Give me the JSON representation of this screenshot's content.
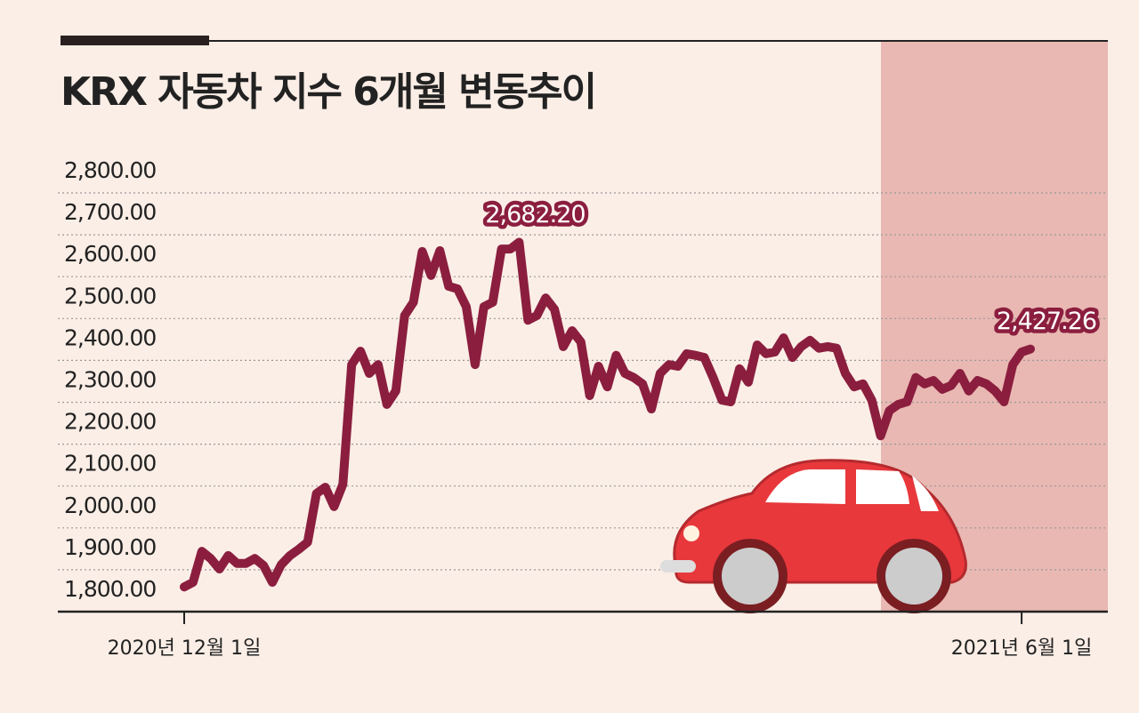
{
  "chart_data": {
    "type": "line",
    "title": "KRX 자동차 지수 6개월 변동추이",
    "categories": [
      "2020년 12월 1일",
      null,
      null,
      null,
      null,
      null,
      null,
      null,
      null,
      null,
      null,
      null,
      null,
      null,
      null,
      null,
      null,
      null,
      null,
      null,
      null,
      null,
      null,
      null,
      null,
      null,
      null,
      null,
      null,
      null,
      null,
      null,
      null,
      null,
      null,
      null,
      null,
      null,
      null,
      null,
      null,
      null,
      null,
      null,
      null,
      null,
      null,
      null,
      null,
      null,
      null,
      null,
      null,
      null,
      null,
      null,
      null,
      null,
      null,
      null,
      null,
      null,
      null,
      null,
      null,
      null,
      null,
      null,
      null,
      null,
      null,
      null,
      null,
      null,
      null,
      null,
      null,
      null,
      null,
      null,
      null,
      null,
      null,
      null,
      null,
      null,
      null,
      null,
      null,
      null,
      null,
      null,
      null,
      null,
      null,
      "2021년 6월 1일",
      null
    ],
    "values": [
      1859,
      1870,
      1944,
      1927,
      1902,
      1934,
      1915,
      1915,
      1927,
      1910,
      1870,
      1912,
      1934,
      1949,
      1966,
      2082,
      2097,
      2051,
      2104,
      2390,
      2422,
      2369,
      2390,
      2295,
      2327,
      2507,
      2539,
      2660,
      2603,
      2662,
      2577,
      2571,
      2528,
      2390,
      2528,
      2539,
      2666,
      2666,
      2682.2,
      2496,
      2507,
      2549,
      2522,
      2433,
      2471,
      2444,
      2316,
      2386,
      2337,
      2412,
      2369,
      2359,
      2344,
      2284,
      2369,
      2390,
      2386,
      2416,
      2412,
      2407,
      2359,
      2305,
      2301,
      2380,
      2348,
      2437,
      2416,
      2420,
      2454,
      2407,
      2433,
      2448,
      2429,
      2433,
      2429,
      2369,
      2337,
      2344,
      2305,
      2220,
      2280,
      2295,
      2301,
      2359,
      2344,
      2352,
      2331,
      2340,
      2369,
      2327,
      2352,
      2344,
      2327,
      2301,
      2390,
      2420,
      2427.26
    ],
    "value_labels": [
      null,
      null,
      null,
      null,
      null,
      null,
      null,
      null,
      null,
      null,
      null,
      null,
      null,
      null,
      null,
      null,
      null,
      null,
      null,
      null,
      null,
      null,
      null,
      null,
      null,
      null,
      null,
      null,
      null,
      null,
      null,
      null,
      null,
      null,
      null,
      null,
      null,
      null,
      "2,682.20",
      null,
      null,
      null,
      null,
      null,
      null,
      null,
      null,
      null,
      null,
      null,
      null,
      null,
      null,
      null,
      null,
      null,
      null,
      null,
      null,
      null,
      null,
      null,
      null,
      null,
      null,
      null,
      null,
      null,
      null,
      null,
      null,
      null,
      null,
      null,
      null,
      null,
      null,
      null,
      null,
      null,
      null,
      null,
      null,
      null,
      null,
      null,
      null,
      null,
      null,
      null,
      null,
      null,
      null,
      null,
      null,
      null,
      "2,427.26"
    ],
    "color": "#8b1e3f",
    "ylim": [
      1800,
      2800
    ],
    "yticks": [
      {
        "value": 1800,
        "label": "1,800.00"
      },
      {
        "value": 1900,
        "label": "1,900.00"
      },
      {
        "value": 2000,
        "label": "2,000.00"
      },
      {
        "value": 2100,
        "label": "2,100.00"
      },
      {
        "value": 2200,
        "label": "2,200.00"
      },
      {
        "value": 2300,
        "label": "2,300.00"
      },
      {
        "value": 2400,
        "label": "2,400.00"
      },
      {
        "value": 2500,
        "label": "2,500.00"
      },
      {
        "value": 2600,
        "label": "2,600.00"
      },
      {
        "value": 2700,
        "label": "2,700.00"
      },
      {
        "value": 2800,
        "label": "2,800.00"
      }
    ],
    "grid": true
  }
}
